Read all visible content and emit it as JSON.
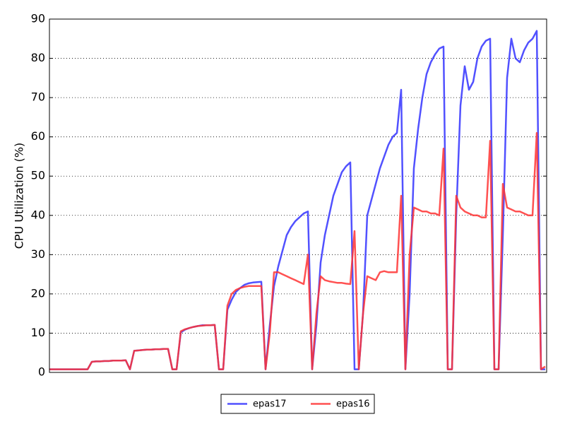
{
  "chart_data": {
    "type": "line",
    "y_label": "CPU Utilization (%)",
    "ylim": [
      0,
      90
    ],
    "yticks": [
      0,
      10,
      20,
      30,
      40,
      50,
      60,
      70,
      80,
      90
    ],
    "grid": true,
    "legend": "bottom",
    "series": [
      {
        "name": "epas17",
        "color": "#3333ff",
        "values": [
          0.8,
          0.8,
          0.8,
          0.8,
          0.8,
          0.8,
          0.8,
          0.8,
          0.8,
          0.8,
          2.7,
          2.8,
          2.8,
          2.9,
          2.9,
          3.0,
          3.0,
          3.0,
          3.1,
          0.8,
          5.5,
          5.6,
          5.7,
          5.8,
          5.8,
          5.9,
          5.9,
          6.0,
          6.0,
          0.8,
          0.8,
          10.2,
          10.9,
          11.3,
          11.6,
          11.8,
          12.0,
          12.0,
          12.0,
          12.1,
          0.8,
          0.8,
          16,
          18.5,
          20.5,
          21.5,
          22.3,
          22.7,
          22.9,
          23.0,
          23.1,
          0.8,
          12,
          22,
          27,
          31,
          35,
          37,
          38.5,
          39.5,
          40.5,
          41,
          0.8,
          12,
          28,
          35,
          40,
          45,
          48,
          51,
          52.5,
          53.5,
          0.8,
          0.8,
          15,
          40,
          44,
          48,
          52,
          55,
          58,
          60,
          61,
          72,
          0.8,
          20,
          52,
          62,
          70,
          76,
          79,
          81,
          82.5,
          83,
          0.8,
          0.8,
          40,
          68,
          78,
          72,
          74,
          80,
          83,
          84.5,
          85,
          0.8,
          0.8,
          35,
          75,
          85,
          80,
          79,
          82,
          84,
          85,
          87,
          0.8,
          0.8
        ]
      },
      {
        "name": "epas16",
        "color": "#ff3333",
        "values": [
          0.8,
          0.8,
          0.8,
          0.8,
          0.8,
          0.8,
          0.8,
          0.8,
          0.8,
          0.8,
          2.7,
          2.8,
          2.8,
          2.9,
          2.9,
          3.0,
          3.0,
          3.0,
          3.1,
          0.8,
          5.5,
          5.6,
          5.7,
          5.8,
          5.8,
          5.9,
          5.9,
          6.0,
          6.0,
          0.8,
          0.8,
          10.5,
          11.0,
          11.3,
          11.6,
          11.8,
          11.9,
          12.0,
          12.0,
          12.1,
          0.8,
          0.8,
          17,
          20,
          21,
          21.5,
          21.8,
          22,
          22,
          22,
          22,
          0.8,
          10,
          25.5,
          25.5,
          25,
          24.5,
          24,
          23.5,
          23,
          22.5,
          30,
          0.8,
          15,
          24.5,
          23.5,
          23.2,
          23,
          22.8,
          22.8,
          22.6,
          22.5,
          36,
          0.8,
          15,
          24.5,
          24,
          23.5,
          25.5,
          25.8,
          25.5,
          25.5,
          25.5,
          45,
          0.8,
          30,
          42,
          41.5,
          41,
          41,
          40.5,
          40.5,
          40,
          57,
          0.8,
          0.8,
          45,
          42,
          41,
          40.5,
          40,
          40,
          39.5,
          39.5,
          59,
          0.8,
          0.8,
          48,
          42,
          41.5,
          41,
          41,
          40.5,
          40,
          40,
          61,
          0.8,
          1.5
        ]
      }
    ]
  }
}
